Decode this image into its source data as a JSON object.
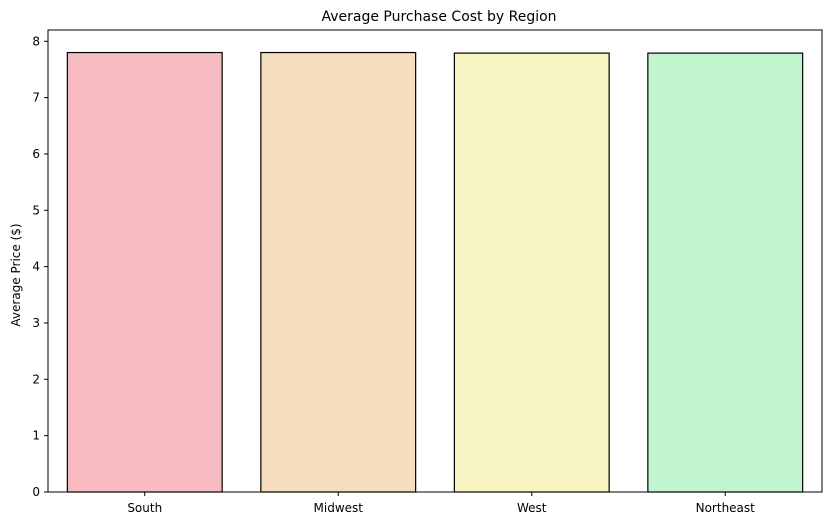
{
  "chart_data": {
    "type": "bar",
    "title": "Average Purchase Cost by Region",
    "xlabel": "",
    "ylabel": "Average Price ($)",
    "categories": [
      "South",
      "Midwest",
      "West",
      "Northeast"
    ],
    "values": [
      7.8,
      7.8,
      7.79,
      7.79
    ],
    "colors": [
      "#f6bcc2",
      "#f5ddbf",
      "#f6f4c1",
      "#c3f4d0"
    ],
    "edge_color": "#000000",
    "ylim": [
      0,
      8.2
    ],
    "yticks": [
      "0",
      "1",
      "2",
      "3",
      "4",
      "5",
      "6",
      "7",
      "8"
    ],
    "grid": false,
    "legend": "none"
  }
}
